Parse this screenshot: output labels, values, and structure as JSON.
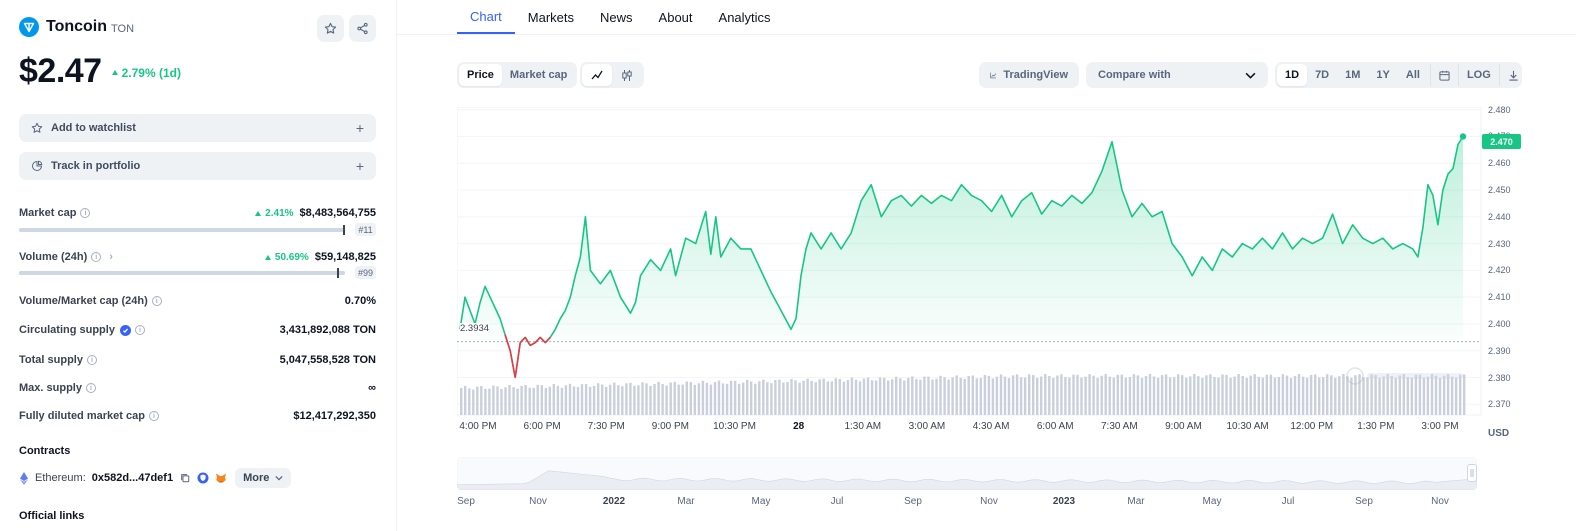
{
  "coin": {
    "name": "Toncoin",
    "symbol": "TON",
    "price": "$2.47",
    "change_1d": "2.79% (1d)",
    "logo_icon": "ton-diamond-icon",
    "accent_color": "#0098ea"
  },
  "actions": {
    "watchlist_label": "Add to watchlist",
    "portfolio_label": "Track in portfolio"
  },
  "stats": {
    "market_cap": {
      "label": "Market cap",
      "change": "2.41%",
      "value": "$8,483,564,755",
      "rank": "#11"
    },
    "volume": {
      "label": "Volume (24h)",
      "change": "50.69%",
      "value": "$59,148,825",
      "rank": "#99"
    },
    "vol_mcap": {
      "label": "Volume/Market cap (24h)",
      "value": "0.70%"
    },
    "circulating": {
      "label": "Circulating supply",
      "value": "3,431,892,088 TON"
    },
    "total": {
      "label": "Total supply",
      "value": "5,047,558,528 TON"
    },
    "max": {
      "label": "Max. supply",
      "value": "∞"
    },
    "fdmc": {
      "label": "Fully diluted market cap",
      "value": "$12,417,292,350"
    }
  },
  "contracts": {
    "title": "Contracts",
    "chain": "Ethereum:",
    "address": "0x582d...47def1",
    "more_label": "More"
  },
  "links": {
    "title": "Official links"
  },
  "tabs": [
    "Chart",
    "Markets",
    "News",
    "About",
    "Analytics"
  ],
  "toolbar": {
    "price_label": "Price",
    "mcap_label": "Market cap",
    "tradingview_label": "TradingView",
    "compare_placeholder": "Compare with",
    "ranges": [
      "1D",
      "7D",
      "1M",
      "1Y",
      "All"
    ],
    "log_label": "LOG"
  },
  "chart_data": {
    "type": "area",
    "currency": "USD",
    "current_price_tag": "2.470",
    "open_price_tag": "2.3934",
    "open_price": 2.3934,
    "y_ticks": [
      2.48,
      2.47,
      2.46,
      2.45,
      2.44,
      2.43,
      2.42,
      2.41,
      2.4,
      2.39,
      2.38,
      2.37
    ],
    "ylim": [
      2.366,
      2.481
    ],
    "x_ticks": [
      "4:00 PM",
      "6:00 PM",
      "7:30 PM",
      "9:00 PM",
      "10:30 PM",
      "28",
      "1:30 AM",
      "3:00 AM",
      "4:30 AM",
      "6:00 AM",
      "7:30 AM",
      "9:00 AM",
      "10:30 AM",
      "12:00 PM",
      "1:30 PM",
      "3:00 PM"
    ],
    "price_points": [
      [
        0,
        2.398
      ],
      [
        5,
        2.41
      ],
      [
        10,
        2.405
      ],
      [
        15,
        2.4
      ],
      [
        20,
        2.408
      ],
      [
        25,
        2.414
      ],
      [
        30,
        2.41
      ],
      [
        35,
        2.406
      ],
      [
        40,
        2.402
      ],
      [
        45,
        2.396
      ],
      [
        50,
        2.39
      ],
      [
        55,
        2.38
      ],
      [
        60,
        2.393
      ],
      [
        65,
        2.395
      ],
      [
        70,
        2.392
      ],
      [
        75,
        2.393
      ],
      [
        80,
        2.395
      ],
      [
        85,
        2.393
      ],
      [
        90,
        2.395
      ],
      [
        95,
        2.398
      ],
      [
        100,
        2.402
      ],
      [
        105,
        2.405
      ],
      [
        110,
        2.41
      ],
      [
        115,
        2.418
      ],
      [
        120,
        2.425
      ],
      [
        125,
        2.44
      ],
      [
        130,
        2.42
      ],
      [
        140,
        2.415
      ],
      [
        150,
        2.42
      ],
      [
        160,
        2.41
      ],
      [
        170,
        2.404
      ],
      [
        175,
        2.408
      ],
      [
        180,
        2.418
      ],
      [
        190,
        2.424
      ],
      [
        200,
        2.42
      ],
      [
        210,
        2.428
      ],
      [
        215,
        2.418
      ],
      [
        225,
        2.432
      ],
      [
        235,
        2.43
      ],
      [
        245,
        2.442
      ],
      [
        250,
        2.426
      ],
      [
        255,
        2.44
      ],
      [
        260,
        2.425
      ],
      [
        270,
        2.432
      ],
      [
        280,
        2.428
      ],
      [
        290,
        2.428
      ],
      [
        300,
        2.42
      ],
      [
        310,
        2.412
      ],
      [
        320,
        2.405
      ],
      [
        330,
        2.398
      ],
      [
        335,
        2.402
      ],
      [
        340,
        2.418
      ],
      [
        345,
        2.428
      ],
      [
        350,
        2.434
      ],
      [
        360,
        2.428
      ],
      [
        370,
        2.434
      ],
      [
        380,
        2.428
      ],
      [
        390,
        2.434
      ],
      [
        400,
        2.446
      ],
      [
        410,
        2.452
      ],
      [
        420,
        2.44
      ],
      [
        430,
        2.446
      ],
      [
        440,
        2.448
      ],
      [
        450,
        2.444
      ],
      [
        460,
        2.448
      ],
      [
        470,
        2.445
      ],
      [
        480,
        2.448
      ],
      [
        490,
        2.446
      ],
      [
        500,
        2.452
      ],
      [
        510,
        2.448
      ],
      [
        520,
        2.446
      ],
      [
        530,
        2.442
      ],
      [
        540,
        2.448
      ],
      [
        550,
        2.44
      ],
      [
        560,
        2.446
      ],
      [
        570,
        2.449
      ],
      [
        580,
        2.441
      ],
      [
        590,
        2.446
      ],
      [
        600,
        2.444
      ],
      [
        610,
        2.448
      ],
      [
        620,
        2.445
      ],
      [
        630,
        2.449
      ],
      [
        640,
        2.457
      ],
      [
        650,
        2.468
      ],
      [
        660,
        2.45
      ],
      [
        670,
        2.44
      ],
      [
        680,
        2.445
      ],
      [
        690,
        2.44
      ],
      [
        700,
        2.442
      ],
      [
        710,
        2.43
      ],
      [
        720,
        2.425
      ],
      [
        730,
        2.418
      ],
      [
        740,
        2.425
      ],
      [
        750,
        2.42
      ],
      [
        760,
        2.428
      ],
      [
        770,
        2.425
      ],
      [
        780,
        2.43
      ],
      [
        790,
        2.428
      ],
      [
        800,
        2.432
      ],
      [
        810,
        2.428
      ],
      [
        820,
        2.434
      ],
      [
        830,
        2.428
      ],
      [
        840,
        2.432
      ],
      [
        850,
        2.43
      ],
      [
        860,
        2.432
      ],
      [
        870,
        2.441
      ],
      [
        880,
        2.43
      ],
      [
        890,
        2.437
      ],
      [
        900,
        2.432
      ],
      [
        910,
        2.43
      ],
      [
        920,
        2.432
      ],
      [
        930,
        2.428
      ],
      [
        940,
        2.43
      ],
      [
        950,
        2.428
      ],
      [
        955,
        2.425
      ],
      [
        960,
        2.436
      ],
      [
        965,
        2.452
      ],
      [
        970,
        2.448
      ],
      [
        975,
        2.437
      ],
      [
        980,
        2.45
      ],
      [
        985,
        2.456
      ],
      [
        990,
        2.458
      ],
      [
        995,
        2.467
      ],
      [
        1000,
        2.47
      ]
    ],
    "navigator_labels": [
      "Sep",
      "Nov",
      "2022",
      "Mar",
      "May",
      "Jul",
      "Sep",
      "Nov",
      "2023",
      "Mar",
      "May",
      "Jul",
      "Sep",
      "Nov"
    ],
    "up_color": "#16c784",
    "down_color": "#ea3943"
  }
}
